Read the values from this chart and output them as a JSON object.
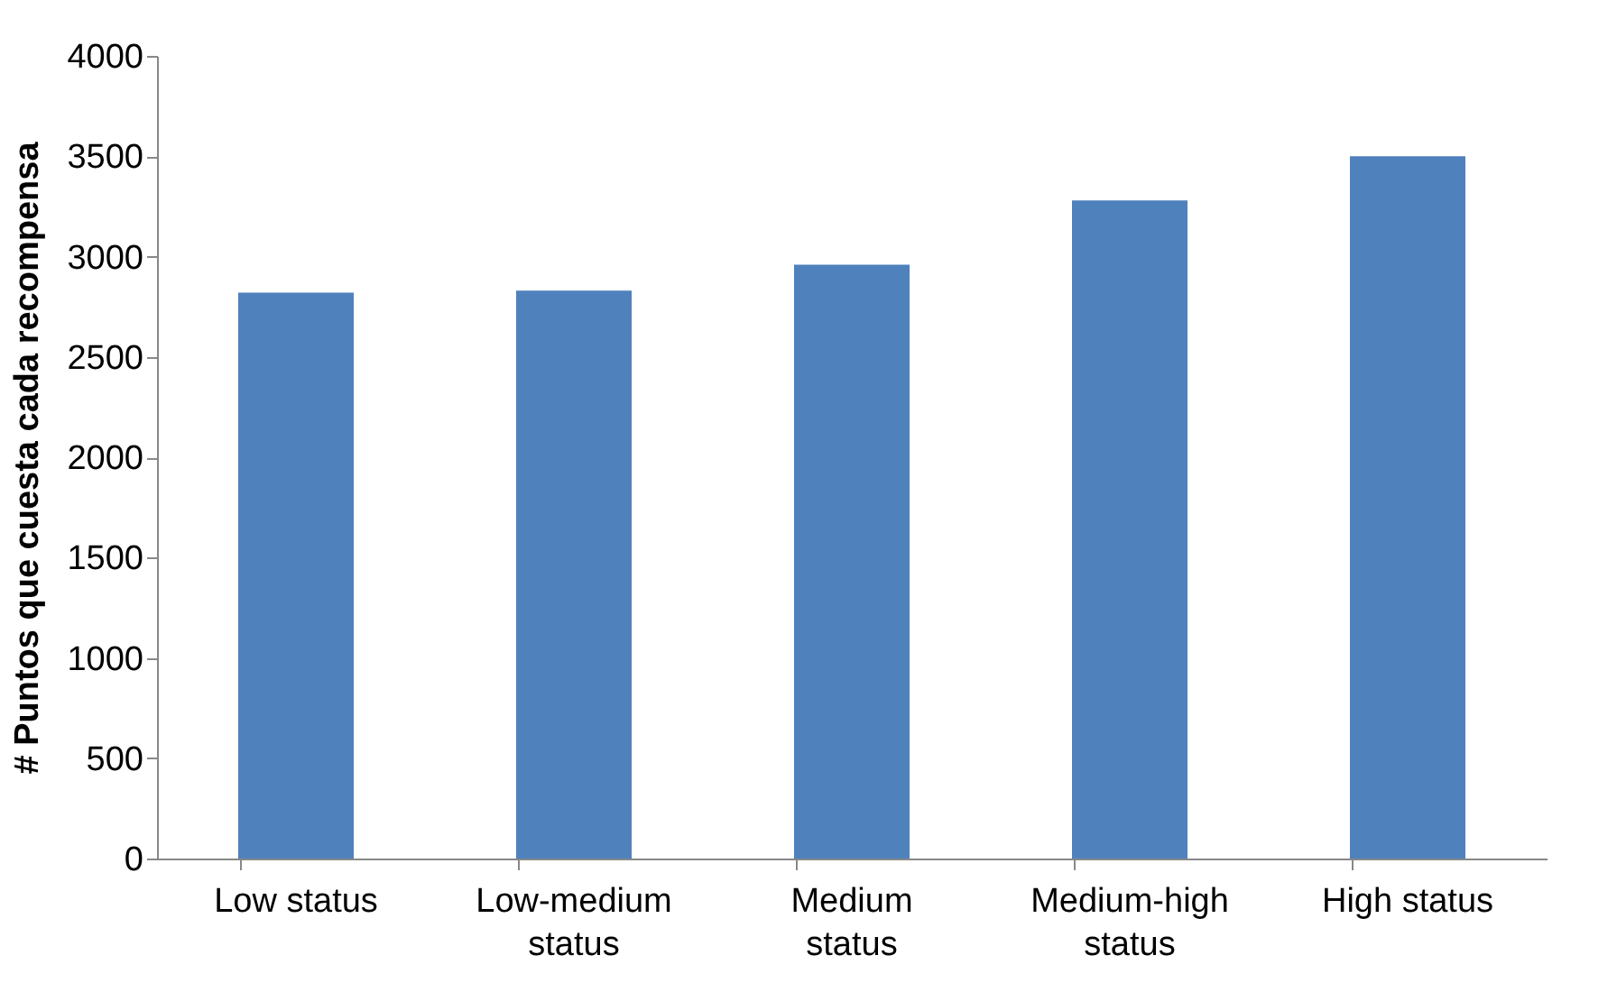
{
  "chart_data": {
    "type": "bar",
    "ylabel": "# Puntos que cuesta cada recompensa",
    "categories": [
      "Low status",
      "Low-medium\nstatus",
      "Medium\nstatus",
      "Medium-high\nstatus",
      "High  status"
    ],
    "values": [
      2820,
      2830,
      2960,
      3280,
      3500
    ],
    "color": "#4f81bd",
    "ylim": [
      0,
      4000
    ],
    "yticks": [
      0,
      500,
      1000,
      1500,
      2000,
      2500,
      3000,
      3500,
      4000
    ],
    "grid": false
  }
}
